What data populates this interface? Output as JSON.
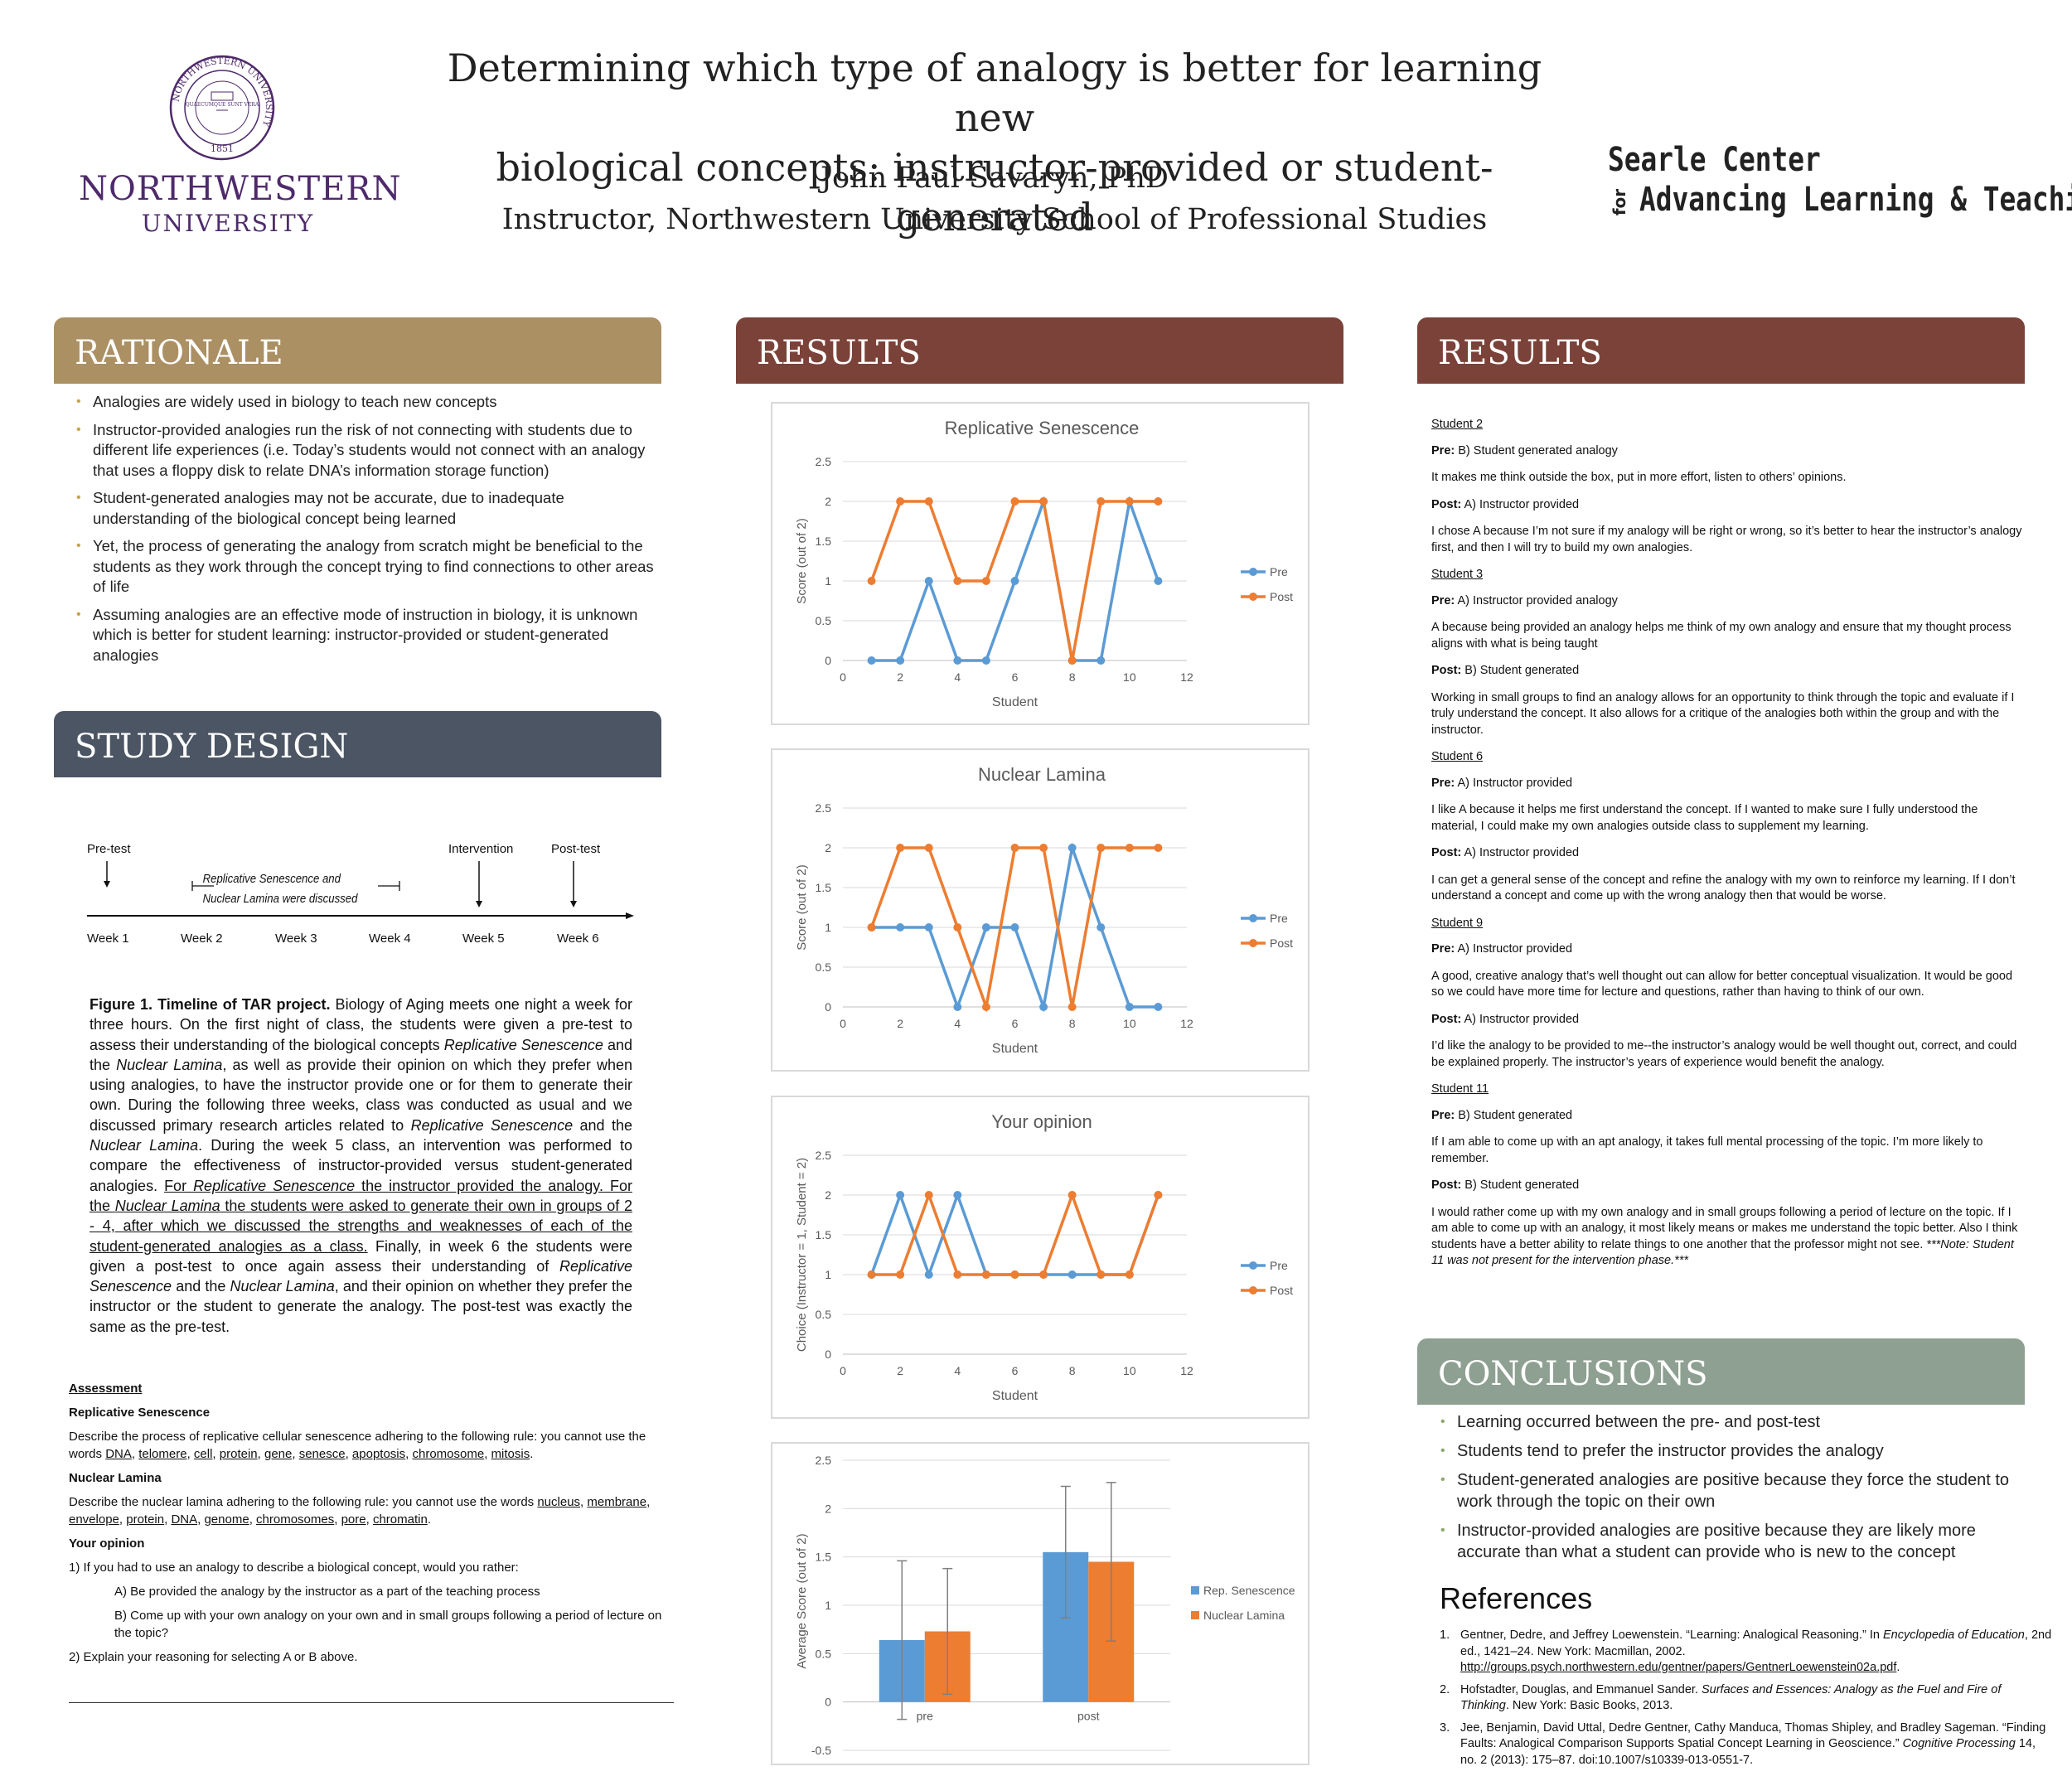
{
  "header": {
    "logo_word": "NORTHWESTERN",
    "logo_univ": "UNIVERSITY",
    "seal_ring_text": "NORTHWESTERN UNIVERSITY",
    "seal_motto": "QUAECUMQUE SUNT VERA",
    "seal_year": "1851",
    "title_line1": "Determining which type of analogy is better for learning new",
    "title_line2": "biological concepts: instructor-provided or student-generated",
    "author": "John Paul Savaryn, PhD",
    "affiliation": "Instructor, Northwestern University School of Professional Studies",
    "searle_line1": "Searle Center",
    "searle_for": "for",
    "searle_line2": "Advancing Learning & Teaching"
  },
  "sections": {
    "rationale": "RATIONALE",
    "study_design": "STUDY DESIGN",
    "results_left": "RESULTS",
    "results_right": "RESULTS",
    "conclusions": "CONCLUSIONS",
    "references": "References"
  },
  "rationale": [
    "Analogies are widely used in biology to teach new concepts",
    "Instructor-provided analogies run the risk of not connecting with students due to different life experiences (i.e. Today’s students would not connect with an analogy that uses a floppy disk to relate DNA’s information storage function)",
    "Student-generated analogies may not be accurate, due to inadequate understanding of the biological concept being learned",
    "Yet, the process of generating the analogy from scratch might be beneficial to the students as they work through the concept trying to find connections to other areas of life",
    "Assuming analogies are an effective mode of instruction in biology, it is unknown which is better for student learning: instructor-provided or student-generated analogies"
  ],
  "timeline": {
    "pretest": "Pre-test",
    "discussed_1": "Replicative Senescence and",
    "discussed_2": "Nuclear Lamina were discussed",
    "intervention": "Intervention",
    "posttest": "Post-test",
    "weeks": [
      "Week 1",
      "Week 2",
      "Week 3",
      "Week 4",
      "Week 5",
      "Week 6"
    ]
  },
  "figure_caption": {
    "label": "Figure 1. Timeline of TAR project.",
    "text_a": " Biology of Aging meets one night a week for three hours. On the first night of class, the students were given a pre-test to assess their understanding of the biological concepts ",
    "rs1": "Replicative Senescence",
    "text_b": " and the ",
    "nl1": "Nuclear Lamina",
    "text_c": ", as well as provide their opinion on which they prefer when using analogies, to have the instructor provide one or for them to generate their own. During the following three weeks, class was conducted as usual and we discussed primary research articles related to ",
    "rs2": "Replicative Senescence",
    "text_d": " and the ",
    "nl2": "Nuclear Lamina",
    "text_e": ". During the week 5 class, an intervention was performed to compare the effectiveness of instructor-provided versus student-generated analogies. ",
    "u1": "For ",
    "u_rs": "Replicative Senescence",
    "u2": " the instructor provided the analogy. For the ",
    "u_nl": "Nuclear Lamina",
    "u3": " the students were asked to generate their own in groups of 2 - 4, after which we discussed the strengths and weaknesses of each of the student-generated analogies as a class.",
    "text_f": " Finally, in week 6 the students were given a post-test to once again assess their understanding of ",
    "rs3": "Replicative Senescence",
    "text_g": " and the ",
    "nl3": "Nuclear Lamina",
    "text_h": ", and their opinion on whether they prefer the instructor or the student to generate the analogy. The post-test was exactly the same as the pre-test."
  },
  "assessment": {
    "heading": "Assessment",
    "rs_heading": "Replicative Senescence",
    "rs_prompt": "Describe the process of replicative cellular senescence adhering to the following rule: you cannot use the words ",
    "rs_words": [
      "DNA",
      "telomere",
      "cell",
      "protein",
      "gene",
      "senesce",
      "apoptosis",
      "chromosome",
      "mitosis"
    ],
    "nl_heading": "Nuclear Lamina",
    "nl_prompt": "Describe the nuclear lamina adhering to the following rule: you cannot use the words ",
    "nl_words": [
      "nucleus",
      "membrane",
      "envelope",
      "protein",
      "DNA",
      "genome",
      "chromosomes",
      "pore",
      "chromatin"
    ],
    "op_heading": "Your opinion",
    "q1": "1) If you had to use an analogy to describe a biological concept, would you rather:",
    "optA": "A) Be provided the analogy by the instructor as a part of the teaching process",
    "optB": "B) Come up with your own analogy on your own and in small groups following a period of lecture on the topic?",
    "q2": "2) Explain your reasoning for selecting A or B above."
  },
  "chart_data": [
    {
      "type": "line",
      "title": "Replicative Senescence",
      "xlabel": "Student",
      "ylabel": "Score (out of 2)",
      "xlim": [
        0,
        12
      ],
      "ylim": [
        0,
        2.5
      ],
      "xticks": [
        "0",
        "2",
        "4",
        "6",
        "8",
        "10",
        "12"
      ],
      "yticks": [
        "0",
        "0.5",
        "1",
        "1.5",
        "2",
        "2.5"
      ],
      "x": [
        1,
        2,
        3,
        4,
        5,
        6,
        7,
        8,
        9,
        10,
        11
      ],
      "series": [
        {
          "name": "Pre",
          "color": "#5b9bd5",
          "values": [
            0,
            0,
            1,
            0,
            0,
            1,
            2,
            0,
            0,
            2,
            1
          ]
        },
        {
          "name": "Post",
          "color": "#ed7d31",
          "values": [
            1,
            2,
            2,
            1,
            1,
            2,
            2,
            0,
            2,
            2,
            2
          ]
        }
      ],
      "grid": true,
      "legend": "right"
    },
    {
      "type": "line",
      "title": "Nuclear Lamina",
      "xlabel": "Student",
      "ylabel": "Score (out of 2)",
      "xlim": [
        0,
        12
      ],
      "ylim": [
        0,
        2.5
      ],
      "xticks": [
        "0",
        "2",
        "4",
        "6",
        "8",
        "10",
        "12"
      ],
      "yticks": [
        "0",
        "0.5",
        "1",
        "1.5",
        "2",
        "2.5"
      ],
      "x": [
        1,
        2,
        3,
        4,
        5,
        6,
        7,
        8,
        9,
        10,
        11
      ],
      "series": [
        {
          "name": "Pre",
          "color": "#5b9bd5",
          "values": [
            1,
            1,
            1,
            0,
            1,
            1,
            0,
            2,
            1,
            0,
            0
          ]
        },
        {
          "name": "Post",
          "color": "#ed7d31",
          "values": [
            1,
            2,
            2,
            1,
            0,
            2,
            2,
            0,
            2,
            2,
            2
          ]
        }
      ],
      "grid": true,
      "legend": "right"
    },
    {
      "type": "line",
      "title": "Your opinion",
      "xlabel": "Student",
      "ylabel": "Choice (Instructor = 1, Student = 2)",
      "xlim": [
        0,
        12
      ],
      "ylim": [
        0,
        2.5
      ],
      "xticks": [
        "0",
        "2",
        "4",
        "6",
        "8",
        "10",
        "12"
      ],
      "yticks": [
        "0",
        "0.5",
        "1",
        "1.5",
        "2",
        "2.5"
      ],
      "x": [
        1,
        2,
        3,
        4,
        5,
        6,
        7,
        8,
        9,
        10,
        11
      ],
      "series": [
        {
          "name": "Pre",
          "color": "#5b9bd5",
          "values": [
            1,
            2,
            1,
            2,
            1,
            1,
            1,
            1,
            1,
            1,
            2
          ]
        },
        {
          "name": "Post",
          "color": "#ed7d31",
          "values": [
            1,
            1,
            2,
            1,
            1,
            1,
            1,
            2,
            1,
            1,
            2
          ]
        }
      ],
      "grid": true,
      "legend": "right"
    },
    {
      "type": "bar",
      "title": "",
      "xlabel": "",
      "ylabel": "Average Score (out of 2)",
      "categories": [
        "pre",
        "post"
      ],
      "ylim": [
        -0.5,
        2.5
      ],
      "yticks": [
        "-0.5",
        "0",
        "0.5",
        "1",
        "1.5",
        "2",
        "2.5"
      ],
      "series": [
        {
          "name": "Rep. Senescence",
          "color": "#5b9bd5",
          "values": [
            0.64,
            1.55
          ],
          "error": [
            0.82,
            0.68
          ]
        },
        {
          "name": "Nuclear Lamina",
          "color": "#ed7d31",
          "values": [
            0.73,
            1.45
          ],
          "error": [
            0.65,
            0.82
          ]
        }
      ],
      "grid": true,
      "legend": "right"
    }
  ],
  "results_text": [
    {
      "student": "Student 2",
      "pre_label": "Pre:",
      "pre": " B) Student generated analogy",
      "pre_reason": "It makes me think outside the box, put in more effort, listen to others’ opinions.",
      "post_label": "Post:",
      "post": " A) Instructor provided",
      "post_reason": "I chose A because I’m not sure if my analogy will be right or wrong, so it’s better to hear the instructor’s analogy first, and then I will try to build my own analogies."
    },
    {
      "student": "Student 3",
      "pre_label": "Pre:",
      "pre": " A) Instructor provided analogy",
      "pre_reason": "A because being provided an analogy helps me think of my own analogy and ensure that my thought process aligns with what is being taught",
      "post_label": "Post:",
      "post": " B) Student generated",
      "post_reason": "Working in small groups to find an analogy allows for an opportunity to think through the topic and evaluate if I truly understand the concept. It also allows for a critique of the analogies both within the group and with the instructor."
    },
    {
      "student": "Student 6",
      "pre_label": "Pre:",
      "pre": " A) Instructor provided",
      "pre_reason": "I like A because it helps me first understand the concept. If I wanted to make sure I fully understood the material, I could make my own analogies outside class to supplement my learning.",
      "post_label": "Post:",
      "post": " A) Instructor provided",
      "post_reason": "I can get a general sense of the concept and refine the analogy with my own to reinforce my learning. If I don’t understand a concept and come up with the wrong analogy then that would be worse."
    },
    {
      "student": "Student 9",
      "pre_label": "Pre:",
      "pre": " A) Instructor provided",
      "pre_reason": "A good, creative analogy that’s well thought out can allow for better conceptual visualization. It would be good so we could have more time for lecture and questions, rather than having to think of our own.",
      "post_label": "Post:",
      "post": " A) Instructor provided",
      "post_reason": "I’d like the analogy to be provided to me--the instructor’s analogy would be well thought out, correct, and could be explained properly. The instructor’s years of experience would benefit the analogy."
    },
    {
      "student": "Student 11",
      "pre_label": "Pre:",
      "pre": " B) Student generated",
      "pre_reason": "If I am able to come up with an apt analogy, it takes full mental processing of the topic. I’m more likely to remember.",
      "post_label": "Post:",
      "post": " B) Student generated",
      "post_reason": "I would rather come up with my own analogy and in small groups following a period of lecture on the topic. If I am able to come up with an analogy, it most likely means or makes me understand the topic better. Also I think students have a better ability to relate things to one another that the professor might not see. ",
      "note": "***Note: Student 11 was not present for the intervention phase.***"
    }
  ],
  "conclusions": [
    "Learning occurred between the pre- and post-test",
    "Students tend to prefer the instructor provides the analogy",
    "Student-generated analogies are positive because they force the student to work through the topic on their own",
    "Instructor-provided analogies are positive because they are likely more accurate than what a student can provide who is new to the concept"
  ],
  "references": [
    {
      "num": "1.",
      "a": "Gentner, Dedre, and Jeffrey Loewenstein. “Learning: Analogical Reasoning.” In ",
      "i": "Encyclopedia of Education",
      "b": ", 2nd ed., 1421–24. New York: Macmillan, 2002. ",
      "link": "http://groups.psych.northwestern.edu/gentner/papers/GentnerLoewenstein02a.pdf",
      "c": "."
    },
    {
      "num": "2.",
      "a": "Hofstadter, Douglas, and Emmanuel Sander. ",
      "i": "Surfaces and Essences: Analogy as the Fuel and Fire of Thinking",
      "b": ". New York: Basic Books, 2013.",
      "link": "",
      "c": ""
    },
    {
      "num": "3.",
      "a": "Jee, Benjamin, David Uttal, Dedre Gentner, Cathy Manduca, Thomas Shipley, and Bradley Sageman. “Finding Faults: Analogical Comparison Supports Spatial Concept Learning in Geoscience.” ",
      "i": "Cognitive Processing",
      "b": " 14, no. 2 (2013): 175–87. doi:10.1007/s10339-013-0551-7.",
      "link": "",
      "c": ""
    }
  ]
}
